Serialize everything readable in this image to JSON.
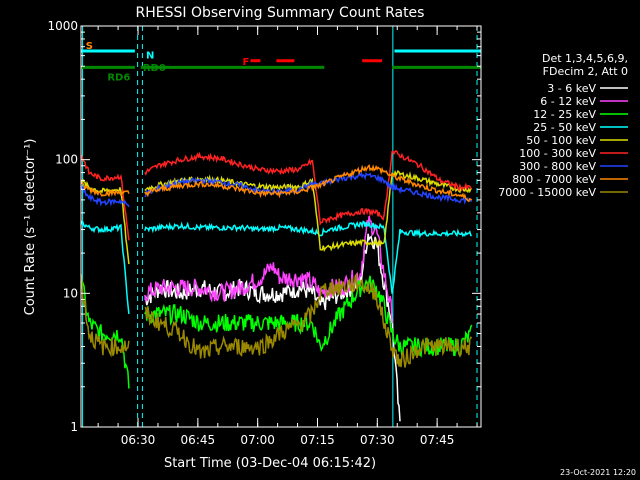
{
  "chart_data": {
    "type": "line",
    "title": "RHESSI Observing Summary Count Rates",
    "xlabel": "Start Time (03-Dec-04 06:15:42)",
    "ylabel": "Count Rate (s⁻¹ detector⁻¹)",
    "y_scale": "log",
    "ylim": [
      1,
      1000
    ],
    "y_ticks": [
      1,
      10,
      100,
      1000
    ],
    "y_tick_labels": [
      "1",
      "10",
      "100",
      "1000"
    ],
    "x_unit": "minutes after 06:15:42",
    "xlim": [
      0,
      100.3
    ],
    "x_ticks": [
      14.3,
      29.3,
      44.3,
      59.3,
      74.3,
      89.3
    ],
    "x_tick_labels": [
      "06:30",
      "06:45",
      "07:00",
      "07:15",
      "07:30",
      "07:45"
    ],
    "legend_header": [
      "Det 1,3,4,5,6,9,",
      "FDecim 2, Att 0"
    ],
    "series": [
      {
        "name": "3 - 6 keV",
        "color": "#ffffff",
        "points": [
          [
            14,
            null
          ],
          [
            16,
            9
          ],
          [
            20,
            11
          ],
          [
            25,
            10
          ],
          [
            30,
            11
          ],
          [
            35,
            10
          ],
          [
            40,
            11
          ],
          [
            45,
            10
          ],
          [
            50,
            10
          ],
          [
            55,
            11
          ],
          [
            58,
            10
          ],
          [
            60,
            8
          ],
          [
            62,
            9
          ],
          [
            65,
            10
          ],
          [
            70,
            12
          ],
          [
            72,
            28
          ],
          [
            74,
            24
          ],
          [
            76,
            12
          ],
          [
            78,
            6
          ],
          [
            80,
            1
          ]
        ]
      },
      {
        "name": "6 - 12 keV",
        "color": "#ff44ff",
        "points": [
          [
            14,
            null
          ],
          [
            16,
            10
          ],
          [
            20,
            11
          ],
          [
            25,
            11
          ],
          [
            30,
            11
          ],
          [
            35,
            10
          ],
          [
            40,
            11
          ],
          [
            45,
            13
          ],
          [
            48,
            16
          ],
          [
            50,
            13
          ],
          [
            55,
            13
          ],
          [
            58,
            12
          ],
          [
            60,
            10
          ],
          [
            62,
            11
          ],
          [
            65,
            11
          ],
          [
            70,
            14
          ],
          [
            72,
            34
          ],
          [
            74,
            30
          ],
          [
            76,
            14
          ],
          [
            78,
            7
          ],
          [
            80,
            null
          ]
        ]
      },
      {
        "name": "12 - 25 keV",
        "color": "#00ff00",
        "points": [
          [
            0,
            13
          ],
          [
            2,
            6
          ],
          [
            5,
            5
          ],
          [
            10,
            5
          ],
          [
            12,
            2
          ],
          [
            14,
            null
          ],
          [
            16,
            7
          ],
          [
            20,
            7
          ],
          [
            25,
            7
          ],
          [
            30,
            6
          ],
          [
            35,
            6
          ],
          [
            40,
            6
          ],
          [
            45,
            6
          ],
          [
            50,
            6
          ],
          [
            55,
            6
          ],
          [
            58,
            6
          ],
          [
            60,
            4
          ],
          [
            62,
            5
          ],
          [
            65,
            7
          ],
          [
            70,
            11
          ],
          [
            72,
            12
          ],
          [
            74,
            11
          ],
          [
            76,
            8
          ],
          [
            78,
            5
          ],
          [
            80,
            4
          ],
          [
            85,
            4
          ],
          [
            90,
            4
          ],
          [
            95,
            4
          ],
          [
            98,
            5
          ]
        ]
      },
      {
        "name": "25 - 50 keV",
        "color": "#00ffff",
        "points": [
          [
            0,
            34
          ],
          [
            2,
            31
          ],
          [
            5,
            30
          ],
          [
            10,
            31
          ],
          [
            12,
            7
          ],
          [
            14,
            null
          ],
          [
            16,
            30
          ],
          [
            20,
            31
          ],
          [
            25,
            32
          ],
          [
            30,
            31
          ],
          [
            35,
            31
          ],
          [
            40,
            31
          ],
          [
            45,
            30
          ],
          [
            50,
            31
          ],
          [
            55,
            30
          ],
          [
            58,
            29
          ],
          [
            60,
            28
          ],
          [
            62,
            30
          ],
          [
            65,
            31
          ],
          [
            70,
            33
          ],
          [
            72,
            33
          ],
          [
            74,
            32
          ],
          [
            76,
            31
          ],
          [
            78,
            10
          ],
          [
            80,
            29
          ],
          [
            85,
            28
          ],
          [
            90,
            28
          ],
          [
            95,
            28
          ],
          [
            98,
            28
          ]
        ]
      },
      {
        "name": "50 - 100 keV",
        "color": "#dddd00",
        "points": [
          [
            0,
            70
          ],
          [
            2,
            62
          ],
          [
            5,
            58
          ],
          [
            10,
            60
          ],
          [
            12,
            16
          ],
          [
            14,
            null
          ],
          [
            16,
            60
          ],
          [
            20,
            65
          ],
          [
            25,
            70
          ],
          [
            30,
            72
          ],
          [
            35,
            70
          ],
          [
            40,
            66
          ],
          [
            45,
            63
          ],
          [
            50,
            62
          ],
          [
            55,
            63
          ],
          [
            58,
            70
          ],
          [
            60,
            22
          ],
          [
            62,
            22
          ],
          [
            65,
            23
          ],
          [
            70,
            24
          ],
          [
            72,
            24
          ],
          [
            74,
            24
          ],
          [
            76,
            23
          ],
          [
            78,
            80
          ],
          [
            80,
            78
          ],
          [
            85,
            72
          ],
          [
            90,
            65
          ],
          [
            95,
            60
          ],
          [
            98,
            60
          ]
        ]
      },
      {
        "name": "100 - 300 keV",
        "color": "#ff2222",
        "points": [
          [
            0,
            110
          ],
          [
            2,
            80
          ],
          [
            5,
            72
          ],
          [
            10,
            75
          ],
          [
            12,
            25
          ],
          [
            14,
            null
          ],
          [
            16,
            80
          ],
          [
            20,
            92
          ],
          [
            25,
            100
          ],
          [
            30,
            106
          ],
          [
            35,
            102
          ],
          [
            40,
            92
          ],
          [
            45,
            84
          ],
          [
            50,
            82
          ],
          [
            55,
            85
          ],
          [
            58,
            98
          ],
          [
            60,
            34
          ],
          [
            62,
            36
          ],
          [
            65,
            38
          ],
          [
            70,
            41
          ],
          [
            72,
            41
          ],
          [
            74,
            40
          ],
          [
            76,
            37
          ],
          [
            78,
            115
          ],
          [
            80,
            108
          ],
          [
            85,
            90
          ],
          [
            90,
            70
          ],
          [
            95,
            62
          ],
          [
            98,
            62
          ]
        ]
      },
      {
        "name": "300 - 800 keV",
        "color": "#2244ff",
        "points": [
          [
            0,
            62
          ],
          [
            2,
            52
          ],
          [
            5,
            48
          ],
          [
            10,
            49
          ],
          [
            12,
            45
          ],
          [
            14,
            null
          ],
          [
            16,
            55
          ],
          [
            20,
            62
          ],
          [
            25,
            68
          ],
          [
            30,
            70
          ],
          [
            35,
            68
          ],
          [
            40,
            64
          ],
          [
            45,
            58
          ],
          [
            50,
            57
          ],
          [
            55,
            60
          ],
          [
            58,
            66
          ],
          [
            60,
            66
          ],
          [
            62,
            68
          ],
          [
            65,
            72
          ],
          [
            70,
            76
          ],
          [
            72,
            76
          ],
          [
            74,
            74
          ],
          [
            76,
            70
          ],
          [
            78,
            62
          ],
          [
            80,
            60
          ],
          [
            85,
            56
          ],
          [
            90,
            52
          ],
          [
            95,
            50
          ],
          [
            98,
            50
          ]
        ]
      },
      {
        "name": "800 - 7000 keV",
        "color": "#ff8800",
        "points": [
          [
            0,
            65
          ],
          [
            2,
            60
          ],
          [
            5,
            56
          ],
          [
            10,
            57
          ],
          [
            12,
            56
          ],
          [
            14,
            null
          ],
          [
            16,
            56
          ],
          [
            20,
            60
          ],
          [
            25,
            64
          ],
          [
            30,
            66
          ],
          [
            35,
            64
          ],
          [
            40,
            60
          ],
          [
            45,
            56
          ],
          [
            50,
            56
          ],
          [
            55,
            58
          ],
          [
            58,
            62
          ],
          [
            60,
            64
          ],
          [
            62,
            68
          ],
          [
            65,
            74
          ],
          [
            70,
            84
          ],
          [
            72,
            88
          ],
          [
            74,
            86
          ],
          [
            76,
            82
          ],
          [
            78,
            75
          ],
          [
            80,
            72
          ],
          [
            85,
            64
          ],
          [
            90,
            58
          ],
          [
            95,
            54
          ],
          [
            98,
            50
          ]
        ]
      },
      {
        "name": "7000 - 15000 keV",
        "color": "#998800",
        "points": [
          [
            0,
            13
          ],
          [
            2,
            5
          ],
          [
            5,
            4
          ],
          [
            10,
            4
          ],
          [
            12,
            4
          ],
          [
            14,
            null
          ],
          [
            16,
            7
          ],
          [
            20,
            6
          ],
          [
            25,
            5
          ],
          [
            30,
            3.5
          ],
          [
            35,
            4
          ],
          [
            40,
            4
          ],
          [
            45,
            4
          ],
          [
            50,
            5
          ],
          [
            55,
            6
          ],
          [
            58,
            7
          ],
          [
            60,
            10
          ],
          [
            62,
            11
          ],
          [
            65,
            11
          ],
          [
            70,
            12
          ],
          [
            72,
            11
          ],
          [
            74,
            10
          ],
          [
            76,
            6
          ],
          [
            78,
            4
          ],
          [
            80,
            3
          ],
          [
            85,
            4
          ],
          [
            90,
            4
          ],
          [
            95,
            4
          ],
          [
            98,
            4
          ]
        ]
      }
    ],
    "state_bars": [
      {
        "label": "N",
        "color": "#00ffff",
        "y": 650,
        "segments": [
          [
            0,
            13.5
          ],
          [
            78.6,
            100.3
          ]
        ]
      },
      {
        "label": "RD6",
        "color": "#008800",
        "y": 490,
        "segments": [
          [
            0,
            13.5
          ]
        ]
      },
      {
        "label": "RD0",
        "color": "#008800",
        "y": 490,
        "segments": [
          [
            15,
            61
          ],
          [
            78,
            100.3
          ]
        ]
      },
      {
        "label": "F",
        "color": "#ff0000",
        "y": 550,
        "segments": [
          [
            42.5,
            45
          ],
          [
            49,
            53.5
          ],
          [
            70.5,
            75.5
          ]
        ]
      }
    ],
    "state_labels": [
      {
        "text": "S",
        "color": "#ff8800",
        "x": 1.2,
        "y": 720
      },
      {
        "text": "N",
        "color": "#00ffff",
        "x": 16.3,
        "y": 610
      },
      {
        "text": "RD0",
        "color": "#008800",
        "x": 15.5,
        "y": 495
      },
      {
        "text": "RD6",
        "color": "#008800",
        "x": 6.6,
        "y": 420
      },
      {
        "text": "F",
        "color": "#ff0000",
        "x": 40.5,
        "y": 548
      }
    ],
    "vertical_lines": [
      {
        "x": 0.4,
        "style": "solid",
        "color": "#00ffff"
      },
      {
        "x": 14.2,
        "style": "dashed",
        "color": "#00ffff"
      },
      {
        "x": 15.4,
        "style": "dashed",
        "color": "#00ffff"
      },
      {
        "x": 78.2,
        "style": "solid",
        "color": "#00ffff"
      },
      {
        "x": 99.3,
        "style": "dashed",
        "color": "#00ffff"
      }
    ]
  },
  "timestamp": "23-Oct-2021 12:20"
}
